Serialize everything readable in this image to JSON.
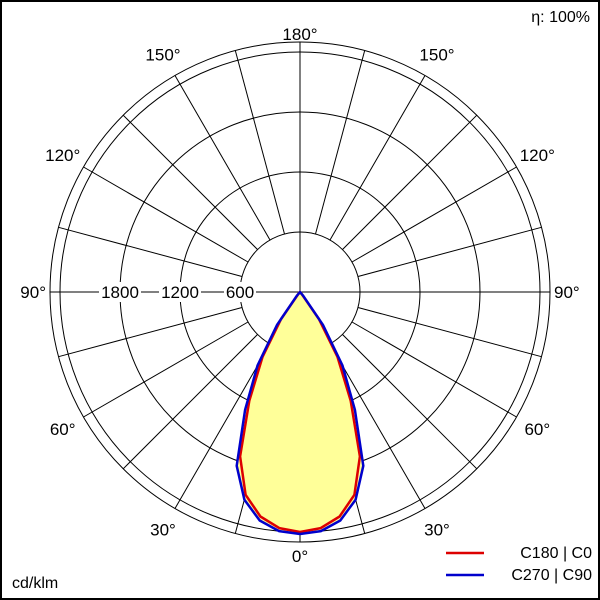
{
  "chart_data": {
    "type": "polar",
    "efficiency_label": "η: 100%",
    "unit_label": "cd/klm",
    "angle_ticks": [
      {
        "angle": 0,
        "label": "0°"
      },
      {
        "angle": 30,
        "label": "30°"
      },
      {
        "angle": 60,
        "label": "60°"
      },
      {
        "angle": 90,
        "label": "90°"
      },
      {
        "angle": 120,
        "label": "120°"
      },
      {
        "angle": 150,
        "label": "150°"
      },
      {
        "angle": 180,
        "label": "180°"
      }
    ],
    "radial_ticks": [
      {
        "value": 600,
        "label": "600"
      },
      {
        "value": 1200,
        "label": "1200"
      },
      {
        "value": 1800,
        "label": "1800"
      }
    ],
    "r_max": 2500,
    "angle_grid_step": 15,
    "grid_values": [
      600,
      1200,
      1800,
      2400
    ],
    "fill_color": "#ffff99",
    "series": [
      {
        "name": "C180 | C0",
        "color": "#dd0000",
        "points": [
          {
            "angle": 0,
            "value": 2400
          },
          {
            "angle": 5,
            "value": 2370
          },
          {
            "angle": 10,
            "value": 2280
          },
          {
            "angle": 15,
            "value": 2100
          },
          {
            "angle": 20,
            "value": 1750
          },
          {
            "angle": 25,
            "value": 1200
          },
          {
            "angle": 30,
            "value": 750
          },
          {
            "angle": 35,
            "value": 330
          },
          {
            "angle": 40,
            "value": 30
          },
          {
            "angle": 45,
            "value": 0
          }
        ]
      },
      {
        "name": "C270 | C90",
        "color": "#0000cc",
        "points": [
          {
            "angle": 0,
            "value": 2420
          },
          {
            "angle": 5,
            "value": 2400
          },
          {
            "angle": 10,
            "value": 2320
          },
          {
            "angle": 15,
            "value": 2150
          },
          {
            "angle": 20,
            "value": 1850
          },
          {
            "angle": 25,
            "value": 1300
          },
          {
            "angle": 30,
            "value": 850
          },
          {
            "angle": 35,
            "value": 400
          },
          {
            "angle": 40,
            "value": 50
          },
          {
            "angle": 45,
            "value": 0
          }
        ]
      }
    ]
  }
}
